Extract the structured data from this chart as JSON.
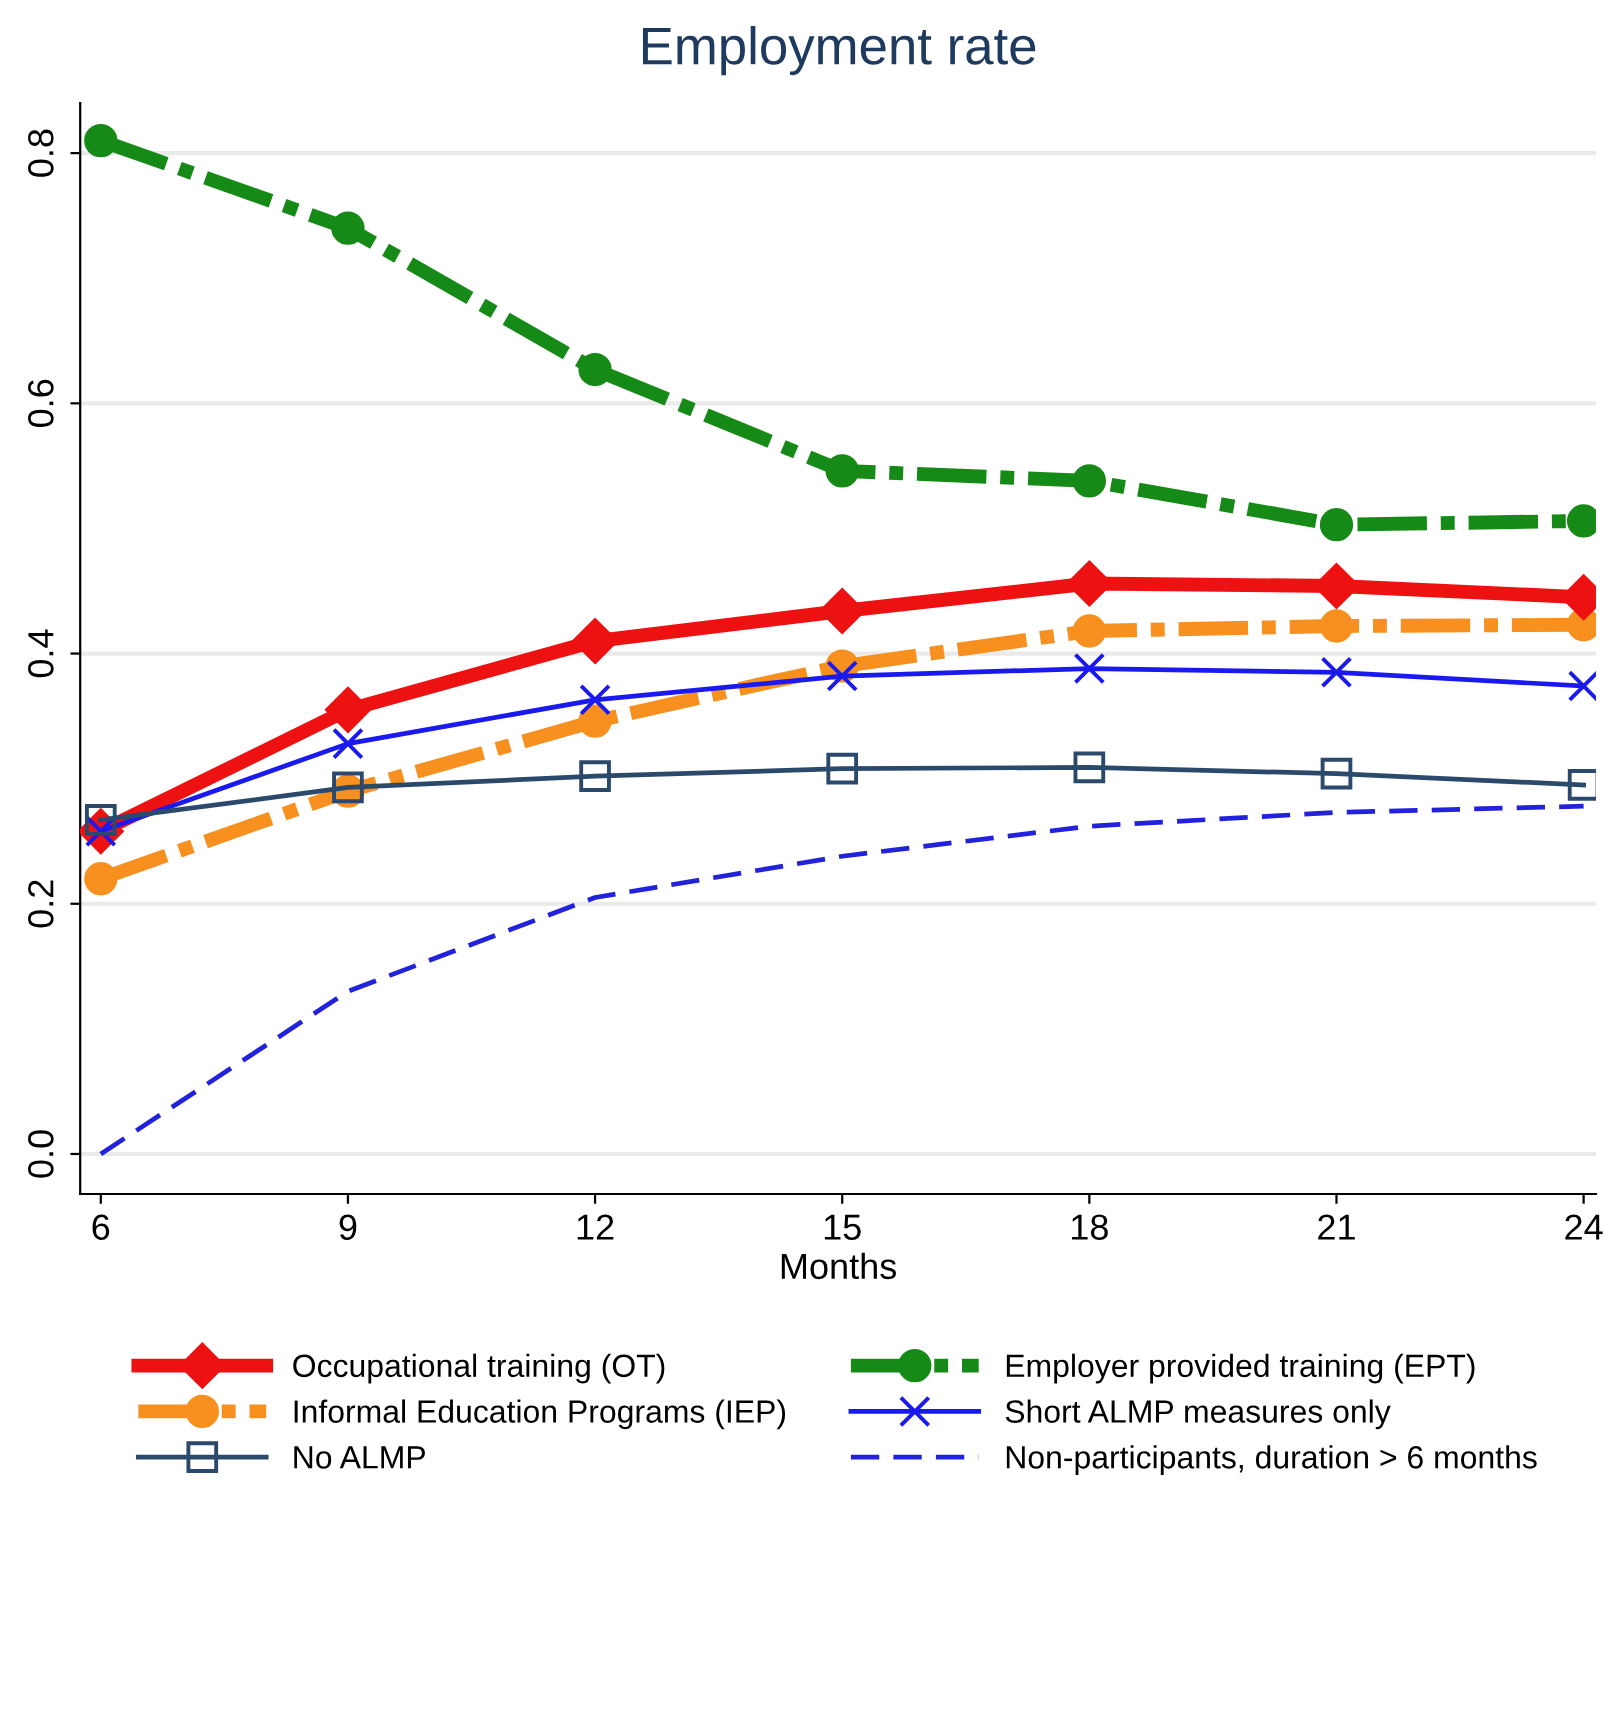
{
  "chart_data": {
    "type": "line",
    "title": "Employment rate",
    "xlabel": "Months",
    "x": [
      6,
      9,
      12,
      15,
      18,
      21,
      24
    ],
    "xlim": [
      5.75,
      24.15
    ],
    "xticks": [
      6,
      9,
      12,
      15,
      18,
      21,
      24
    ],
    "ylim": [
      -0.032,
      0.84
    ],
    "yticks": [
      {
        "value": 0,
        "label": "0.0"
      },
      0.2,
      0.4,
      0.6,
      0.8
    ],
    "grid": "y",
    "legend": "bottom",
    "series": [
      {
        "name": "Occupational training (OT)",
        "color": "#ee1111",
        "marker": "diamond",
        "line_style": "solid",
        "values": [
          0.258,
          0.355,
          0.41,
          0.434,
          0.456,
          0.454,
          0.445
        ]
      },
      {
        "name": "Employer provided training (EPT)",
        "color": "#168a16",
        "marker": "circle",
        "line_style": "dashdot",
        "values": [
          0.81,
          0.74,
          0.627,
          0.546,
          0.538,
          0.503,
          0.506
        ]
      },
      {
        "name": "Informal Education Programs (IEP)",
        "color": "#f7901e",
        "marker": "circle",
        "line_style": "dashdot",
        "values": [
          0.22,
          0.29,
          0.346,
          0.39,
          0.418,
          0.422,
          0.423
        ]
      },
      {
        "name": "Short ALMP measures only",
        "color": "#1a1aee",
        "marker": "cross",
        "line_style": "solid",
        "values": [
          0.258,
          0.328,
          0.363,
          0.382,
          0.388,
          0.385,
          0.374
        ]
      },
      {
        "name": "No ALMP",
        "color": "#2b4a6b",
        "marker": "square",
        "line_style": "solid",
        "values": [
          0.267,
          0.293,
          0.302,
          0.308,
          0.309,
          0.304,
          0.295
        ]
      },
      {
        "name": "Non-participants, duration > 6 months",
        "color": "#2222dd",
        "marker": "none",
        "line_style": "dashed",
        "values": [
          0.0,
          0.13,
          0.205,
          0.238,
          0.262,
          0.273,
          0.278
        ]
      }
    ]
  }
}
